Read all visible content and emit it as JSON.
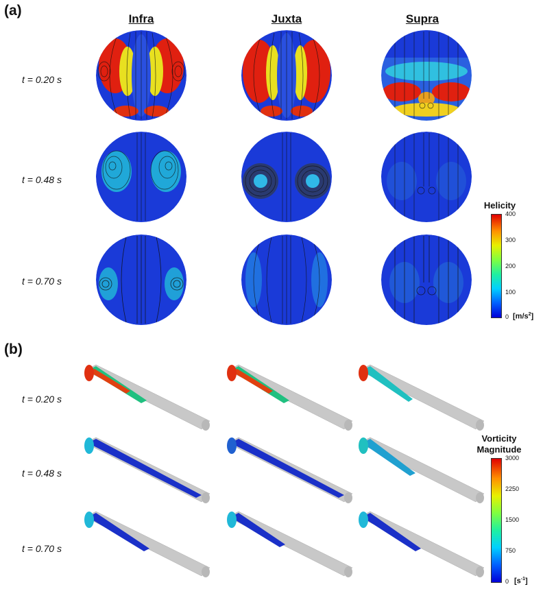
{
  "panel_a": {
    "label": "(a)",
    "columns": [
      "Infra",
      "Juxta",
      "Supra"
    ],
    "rows": [
      "t = 0.20 s",
      "t = 0.48 s",
      "t = 0.70 s"
    ],
    "colorbar": {
      "title": "Helicity",
      "ticks": [
        "400",
        "300",
        "200",
        "100",
        "0"
      ],
      "unit_base": "[m/s",
      "unit_exp": "2",
      "unit_close": "]",
      "range": [
        0,
        400
      ]
    }
  },
  "panel_b": {
    "label": "(b)",
    "rows": [
      "t = 0.20 s",
      "t = 0.48 s",
      "t = 0.70 s"
    ],
    "colorbar": {
      "title_line1": "Vorticity",
      "title_line2": "Magnitude",
      "ticks": [
        "3000",
        "2250",
        "1500",
        "750",
        "0"
      ],
      "unit_base": "[s",
      "unit_exp": "-1",
      "unit_close": "]",
      "range": [
        0,
        3000
      ]
    }
  },
  "colors": {
    "low": "#1a2fd0",
    "mid": "#20e0c0",
    "high": "#e01010",
    "tube": "#c8c8c8"
  }
}
